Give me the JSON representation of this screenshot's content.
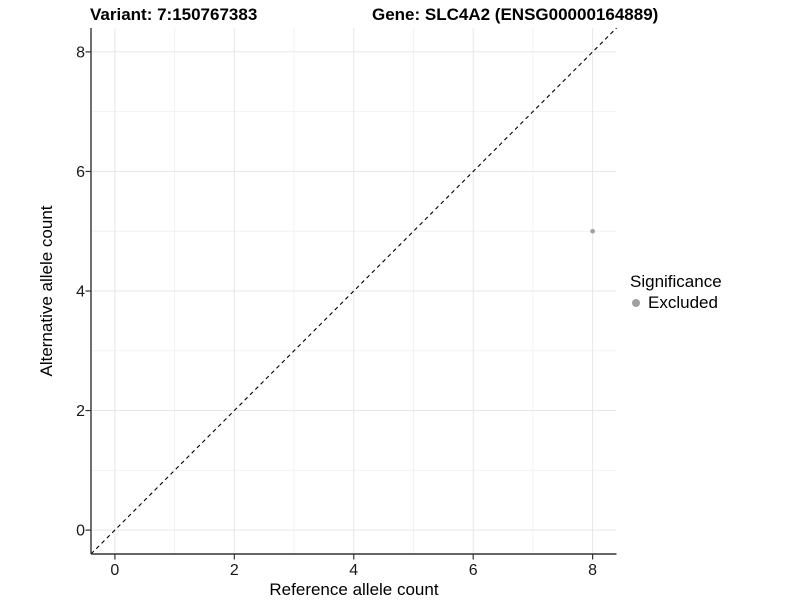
{
  "header": {
    "variant_title": "Variant: 7:150767383",
    "gene_title": "Gene: SLC4A2 (ENSG00000164889)"
  },
  "chart_data": {
    "type": "scatter",
    "xlabel": "Reference allele count",
    "ylabel": "Alternative allele count",
    "xlim": [
      -0.4,
      8.4
    ],
    "ylim": [
      -0.4,
      8.4
    ],
    "x_ticks": [
      0,
      2,
      4,
      6,
      8
    ],
    "y_ticks": [
      0,
      2,
      4,
      6,
      8
    ],
    "x_minor": [
      1,
      3,
      5,
      7
    ],
    "y_minor": [
      1,
      3,
      5,
      7
    ],
    "grid": true,
    "points": [
      {
        "x": 8,
        "y": 5,
        "series": "Excluded"
      }
    ],
    "reference_line": {
      "type": "identity",
      "style": "dashed",
      "from": [
        -0.4,
        -0.4
      ],
      "to": [
        8.4,
        8.4
      ],
      "color": "#000000"
    },
    "legend": {
      "title": "Significance",
      "position": "right",
      "items": [
        {
          "label": "Excluded",
          "color": "#a0a0a0"
        }
      ]
    },
    "colors": {
      "point": "#a0a0a0",
      "grid_major": "#e7e7e7",
      "grid_minor": "#f2f2f2",
      "axis_line": "#333333",
      "tick_text": "#1a1a1a"
    }
  }
}
